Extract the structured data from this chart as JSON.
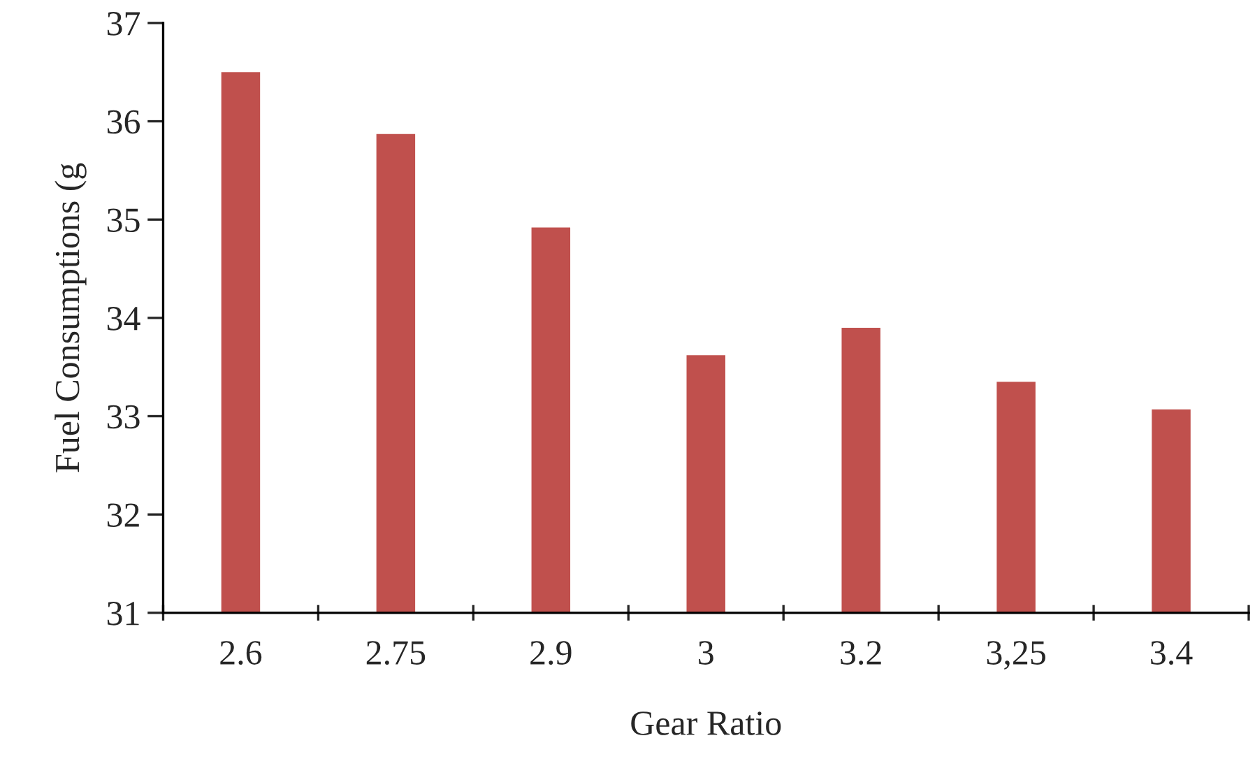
{
  "chart_data": {
    "type": "bar",
    "xlabel": "Gear Ratio",
    "ylabel": "Fuel Consumptions (g",
    "categories": [
      "2.6",
      "2.75",
      "2.9",
      "3",
      "3.2",
      "3,25",
      "3.4"
    ],
    "values": [
      36.5,
      35.87,
      34.92,
      33.62,
      33.9,
      33.35,
      33.07
    ],
    "color": "#c0504d",
    "ylim": [
      31,
      37
    ],
    "yticks": [
      31,
      32,
      33,
      34,
      35,
      36,
      37
    ],
    "grid": false,
    "legend": false
  }
}
